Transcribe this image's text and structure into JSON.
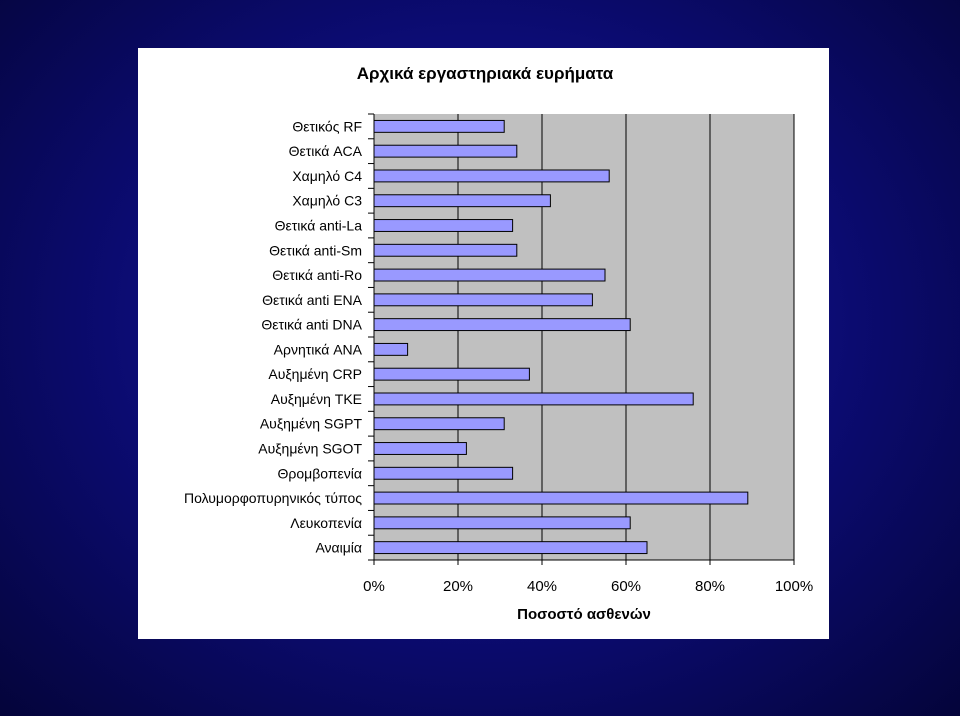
{
  "chart_data": {
    "type": "bar",
    "orientation": "horizontal",
    "title": "Αρχικά εργαστηριακά ευρήματα",
    "xlabel": "Ποσοστό ασθενών",
    "ylabel": "",
    "xlim": [
      0,
      100
    ],
    "x_ticks": [
      0,
      20,
      40,
      60,
      80,
      100
    ],
    "x_tick_labels": [
      "0%",
      "20%",
      "40%",
      "60%",
      "80%",
      "100%"
    ],
    "grid": true,
    "legend": "none",
    "categories": [
      "Θετικός RF",
      "Θετικά ACA",
      "Χαμηλό C4",
      "Χαμηλό C3",
      "Θετικά anti-La",
      "Θετικά anti-Sm",
      "Θετικά anti-Ro",
      "Θετικά anti ENA",
      "Θετικά anti DNA",
      "Αρνητικά ANA",
      "Αυξημένη CRP",
      "Αυξημένη TKE",
      "Αυξημένη SGPT",
      "Αυξημένη SGOT",
      "Θρομβοπενία",
      "Πολυμορφοπυρηνικός τύπος",
      "Λευκοπενία",
      "Αναιμία"
    ],
    "values": [
      31,
      34,
      56,
      42,
      33,
      34,
      55,
      52,
      61,
      8,
      37,
      76,
      31,
      22,
      33,
      89,
      61,
      65
    ],
    "colors": {
      "bar_fill": "#9999ff",
      "bar_stroke": "#000000",
      "plot_bg": "#c0c0c0",
      "grid": "#000000"
    }
  }
}
